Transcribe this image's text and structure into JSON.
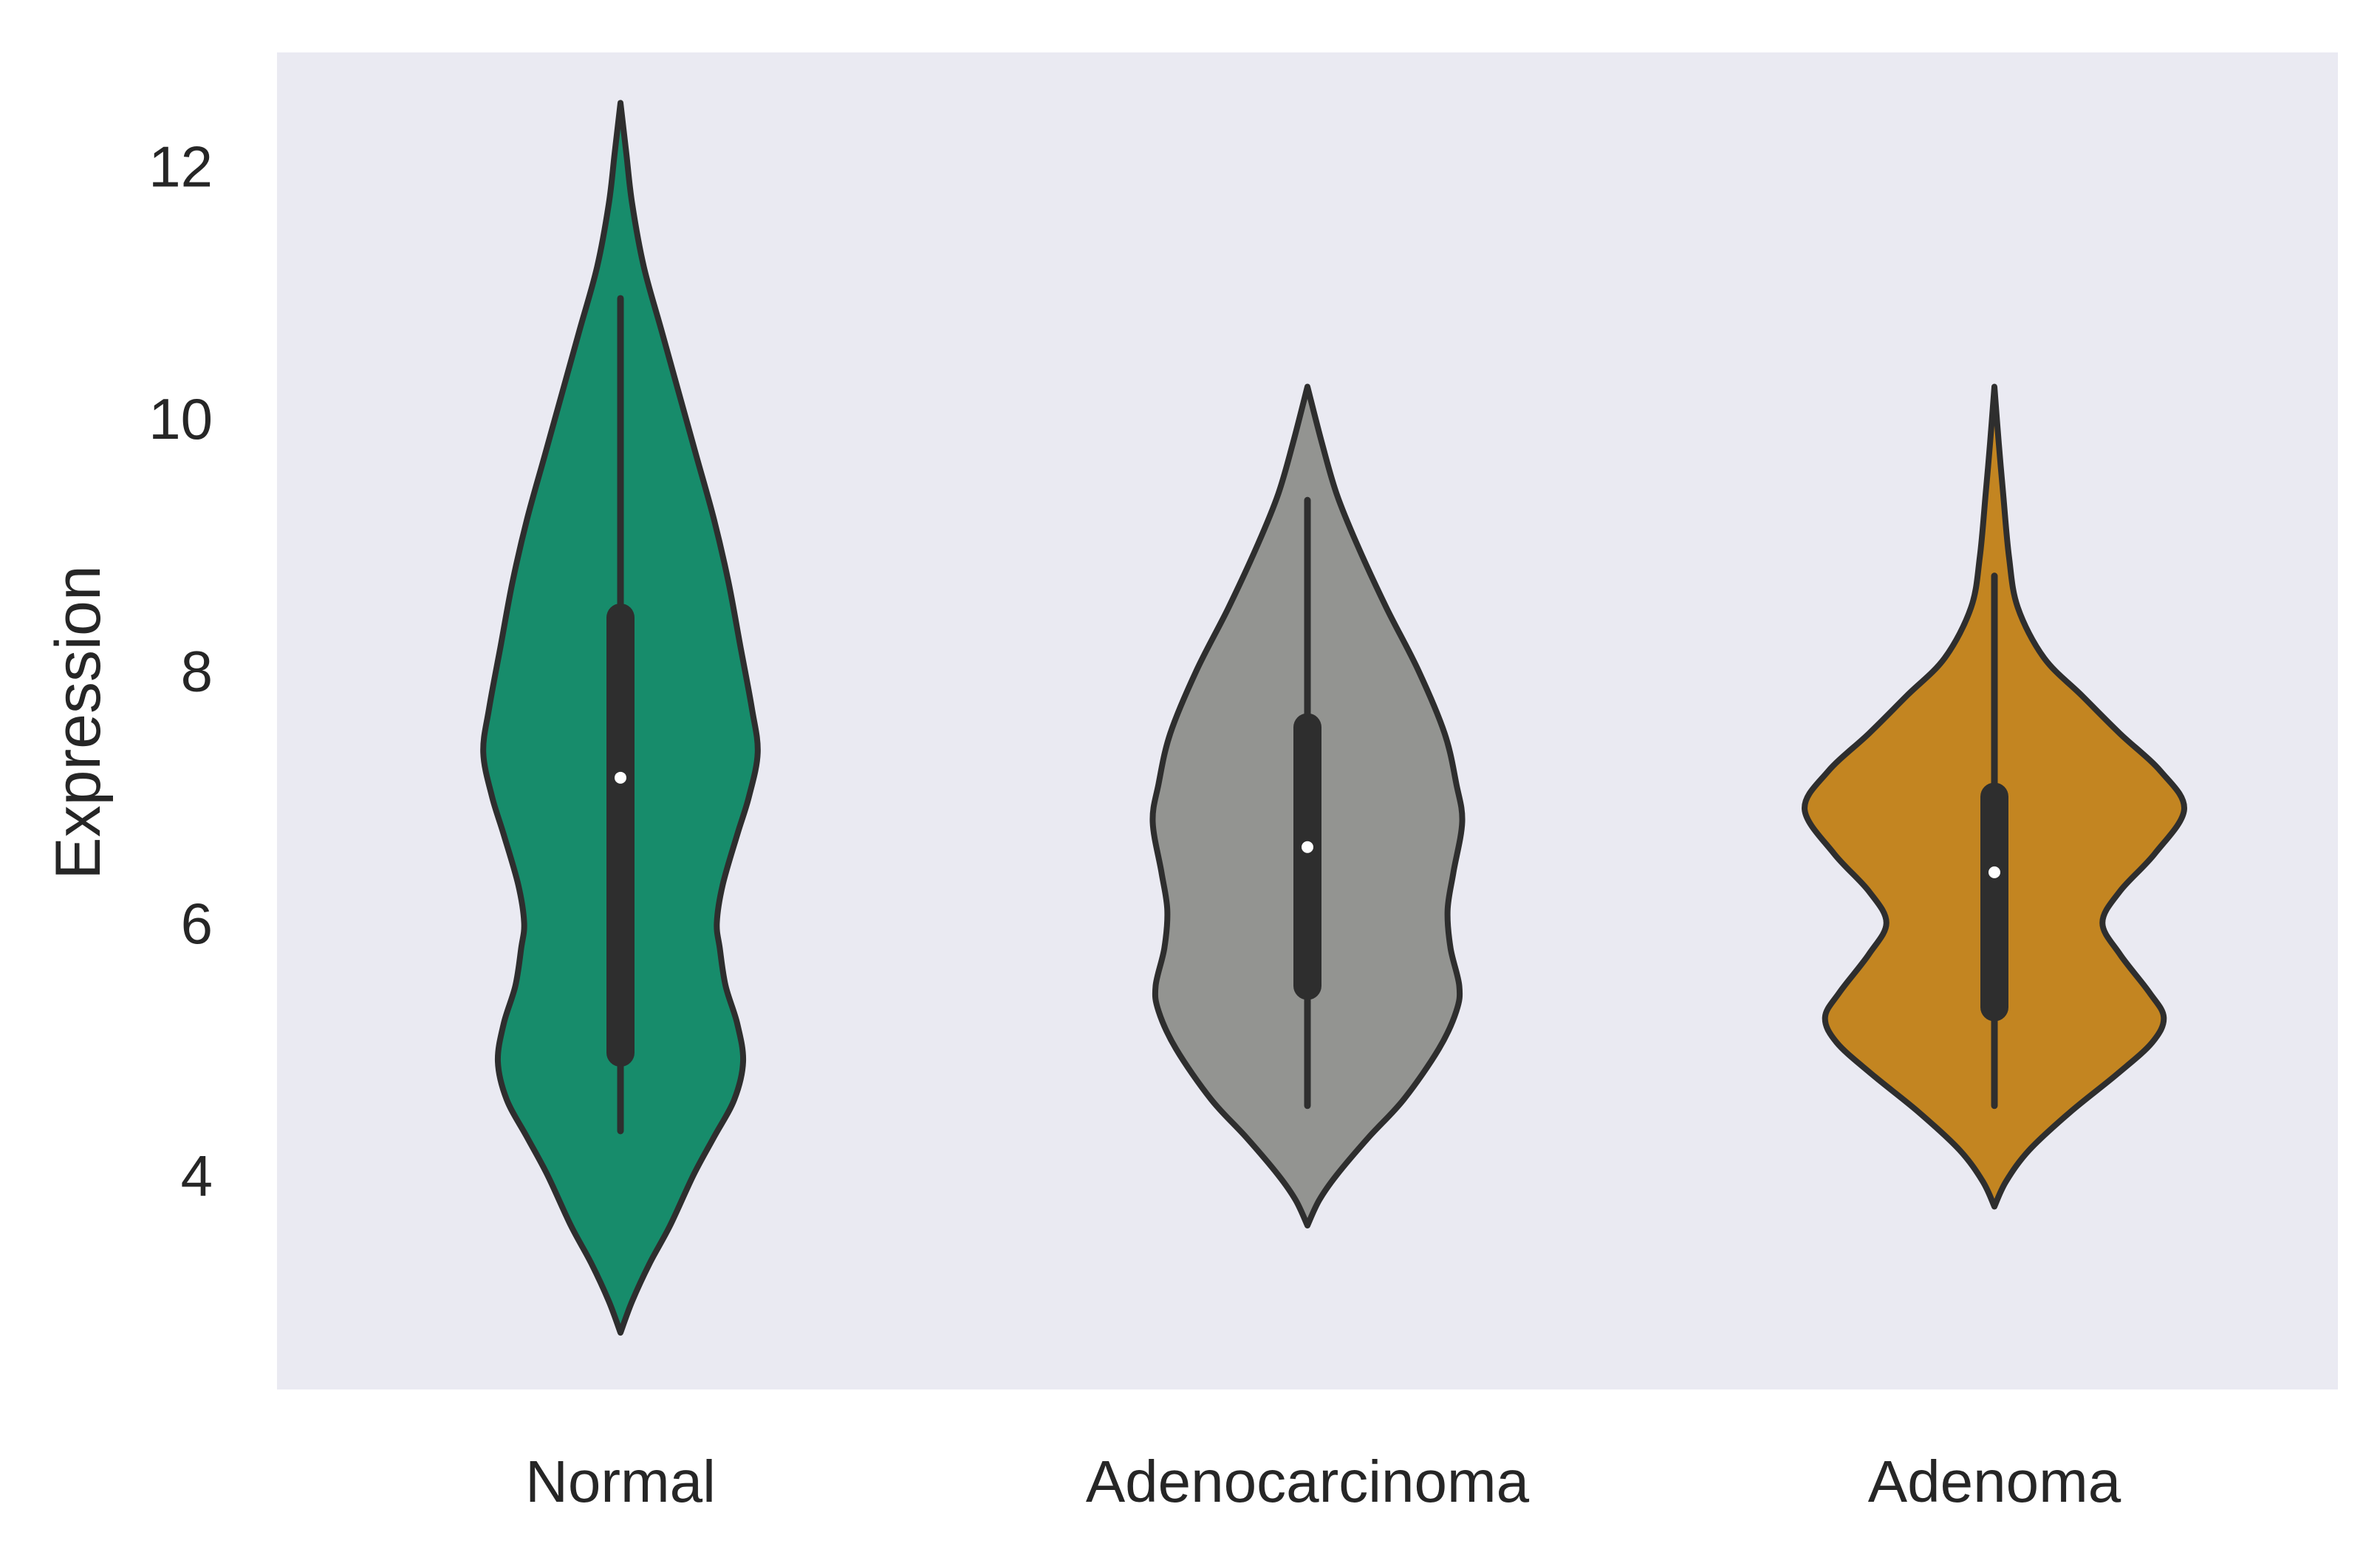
{
  "chart_data": {
    "type": "violin",
    "title": "",
    "xlabel": "",
    "ylabel": "Expression",
    "ylim": [
      2.3,
      12.9
    ],
    "yticks": [
      4,
      6,
      8,
      10,
      12
    ],
    "grid": false,
    "background_color": "#eaeaf2",
    "outline_color": "#2e2e2e",
    "categories": [
      "Normal",
      "Adenocarcinoma",
      "Adenoma"
    ],
    "series": [
      {
        "category": "Normal",
        "color": "#178c6b",
        "min": 2.75,
        "max": 12.5,
        "whisker_low": 4.35,
        "whisker_high": 10.95,
        "q1": 4.97,
        "q3": 8.42,
        "median": 7.15,
        "density_profile": [
          [
            2.75,
            0.0
          ],
          [
            3.0,
            0.04
          ],
          [
            3.3,
            0.1
          ],
          [
            3.6,
            0.17
          ],
          [
            4.0,
            0.25
          ],
          [
            4.3,
            0.32
          ],
          [
            4.6,
            0.39
          ],
          [
            4.9,
            0.42
          ],
          [
            5.2,
            0.4
          ],
          [
            5.5,
            0.36
          ],
          [
            5.8,
            0.34
          ],
          [
            6.0,
            0.33
          ],
          [
            6.3,
            0.35
          ],
          [
            6.7,
            0.4
          ],
          [
            7.0,
            0.44
          ],
          [
            7.35,
            0.47
          ],
          [
            7.7,
            0.45
          ],
          [
            8.2,
            0.41
          ],
          [
            8.7,
            0.37
          ],
          [
            9.2,
            0.32
          ],
          [
            9.7,
            0.26
          ],
          [
            10.2,
            0.2
          ],
          [
            10.7,
            0.14
          ],
          [
            11.2,
            0.08
          ],
          [
            11.7,
            0.04
          ],
          [
            12.1,
            0.02
          ],
          [
            12.5,
            0.0
          ]
        ]
      },
      {
        "category": "Adenocarcinoma",
        "color": "#939491",
        "min": 3.6,
        "max": 10.25,
        "whisker_low": 4.55,
        "whisker_high": 9.35,
        "q1": 5.5,
        "q3": 7.55,
        "median": 6.6,
        "density_profile": [
          [
            3.6,
            0.0
          ],
          [
            3.8,
            0.04
          ],
          [
            4.0,
            0.1
          ],
          [
            4.3,
            0.21
          ],
          [
            4.6,
            0.33
          ],
          [
            5.0,
            0.45
          ],
          [
            5.3,
            0.51
          ],
          [
            5.5,
            0.52
          ],
          [
            5.8,
            0.49
          ],
          [
            6.1,
            0.48
          ],
          [
            6.4,
            0.5
          ],
          [
            6.8,
            0.53
          ],
          [
            7.1,
            0.51
          ],
          [
            7.5,
            0.47
          ],
          [
            8.0,
            0.38
          ],
          [
            8.5,
            0.27
          ],
          [
            9.0,
            0.17
          ],
          [
            9.4,
            0.1
          ],
          [
            9.8,
            0.05
          ],
          [
            10.25,
            0.0
          ]
        ]
      },
      {
        "category": "Adenoma",
        "color": "#c38521",
        "min": 3.75,
        "max": 10.25,
        "whisker_low": 4.55,
        "whisker_high": 8.75,
        "q1": 5.33,
        "q3": 7.0,
        "median": 6.4,
        "density_profile": [
          [
            3.75,
            0.0
          ],
          [
            3.95,
            0.04
          ],
          [
            4.2,
            0.12
          ],
          [
            4.5,
            0.26
          ],
          [
            4.8,
            0.42
          ],
          [
            5.05,
            0.54
          ],
          [
            5.25,
            0.58
          ],
          [
            5.45,
            0.53
          ],
          [
            5.75,
            0.43
          ],
          [
            6.0,
            0.37
          ],
          [
            6.25,
            0.43
          ],
          [
            6.55,
            0.55
          ],
          [
            6.9,
            0.65
          ],
          [
            7.2,
            0.57
          ],
          [
            7.5,
            0.43
          ],
          [
            7.8,
            0.3
          ],
          [
            8.1,
            0.17
          ],
          [
            8.5,
            0.08
          ],
          [
            8.9,
            0.05
          ],
          [
            9.4,
            0.03
          ],
          [
            9.8,
            0.015
          ],
          [
            10.25,
            0.0
          ]
        ]
      }
    ]
  }
}
